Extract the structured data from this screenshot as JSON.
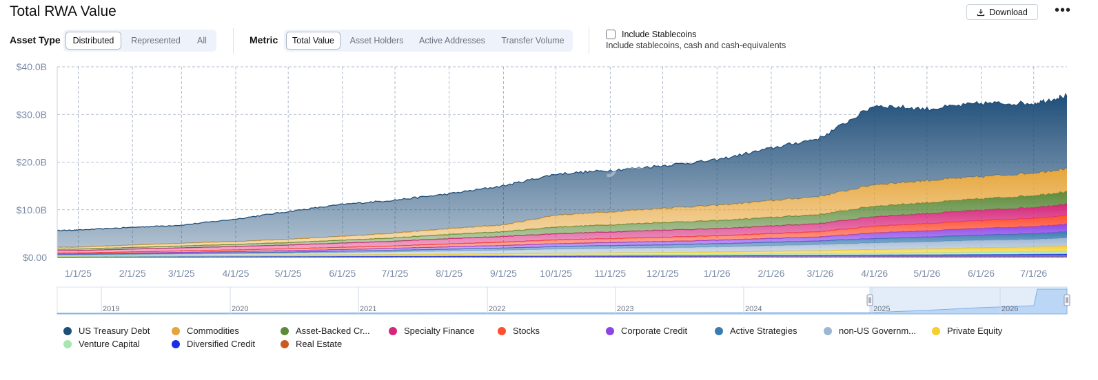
{
  "header": {
    "title": "Total RWA Value",
    "download_label": "Download",
    "more_label": "•••"
  },
  "controls": {
    "asset_type_label": "Asset Type",
    "asset_type_options": [
      "Distributed",
      "Represented",
      "All"
    ],
    "asset_type_selected": "Distributed",
    "metric_label": "Metric",
    "metric_options": [
      "Total Value",
      "Asset Holders",
      "Active Addresses",
      "Transfer Volume"
    ],
    "metric_selected": "Total Value",
    "stablecoins_label": "Include Stablecoins",
    "stablecoins_sublabel": "Include stablecoins, cash and cash-equivalents",
    "stablecoins_checked": false
  },
  "chart_data": {
    "type": "area",
    "stacked": true,
    "watermark": "rwa.xyz",
    "y_ticks": [
      "$0.00",
      "$10.0B",
      "$20.0B",
      "$30.0B",
      "$40.0B"
    ],
    "y_unit": "$B",
    "ylim": [
      0,
      40
    ],
    "grid": true,
    "x_tick_labels": [
      "1/1/25",
      "2/1/25",
      "3/1/25",
      "4/1/25",
      "5/1/25",
      "6/1/25",
      "7/1/25",
      "8/1/25",
      "9/1/25",
      "10/1/25",
      "11/1/25",
      "12/1/25",
      "1/1/26",
      "2/1/26",
      "3/1/26",
      "4/1/26",
      "5/1/26",
      "6/1/26",
      "7/1/26"
    ],
    "x": [
      "2024-12-20",
      "2025-01-01",
      "2025-02-01",
      "2025-03-01",
      "2025-04-01",
      "2025-05-01",
      "2025-06-01",
      "2025-07-01",
      "2025-08-01",
      "2025-09-01",
      "2025-10-01",
      "2025-11-01",
      "2025-12-01",
      "2026-01-01",
      "2026-02-01",
      "2026-03-01",
      "2026-04-01",
      "2026-05-01",
      "2026-06-01",
      "2026-07-01",
      "2026-07-20"
    ],
    "series": [
      {
        "name": "Real Estate",
        "color": "#cc5a1f",
        "values": [
          0.05,
          0.05,
          0.06,
          0.06,
          0.07,
          0.07,
          0.07,
          0.08,
          0.08,
          0.08,
          0.09,
          0.09,
          0.09,
          0.1,
          0.1,
          0.1,
          0.11,
          0.11,
          0.11,
          0.12,
          0.12
        ]
      },
      {
        "name": "Diversified Credit",
        "color": "#1a2ee6",
        "values": [
          0.1,
          0.1,
          0.1,
          0.12,
          0.12,
          0.13,
          0.14,
          0.15,
          0.16,
          0.17,
          0.2,
          0.22,
          0.24,
          0.26,
          0.3,
          0.35,
          0.4,
          0.45,
          0.5,
          0.55,
          0.6
        ]
      },
      {
        "name": "Venture Capital",
        "color": "#a8e6b0",
        "values": [
          0.1,
          0.1,
          0.12,
          0.12,
          0.14,
          0.15,
          0.16,
          0.18,
          0.2,
          0.22,
          0.25,
          0.27,
          0.3,
          0.32,
          0.35,
          0.38,
          0.42,
          0.45,
          0.5,
          0.55,
          0.6
        ]
      },
      {
        "name": "Private Equity",
        "color": "#f5cf2e",
        "values": [
          0.1,
          0.1,
          0.12,
          0.14,
          0.16,
          0.18,
          0.2,
          0.22,
          0.25,
          0.3,
          0.35,
          0.38,
          0.42,
          0.45,
          0.55,
          0.6,
          0.75,
          0.8,
          0.9,
          1.0,
          1.1
        ]
      },
      {
        "name": "non-US Government Debt",
        "color": "#9db6d2",
        "values": [
          0.2,
          0.2,
          0.25,
          0.3,
          0.35,
          0.4,
          0.5,
          0.6,
          0.7,
          0.8,
          0.9,
          1.0,
          1.0,
          1.1,
          1.2,
          1.3,
          1.4,
          1.5,
          1.6,
          1.6,
          1.7
        ]
      },
      {
        "name": "Active Strategies",
        "color": "#3b7bb0",
        "values": [
          0.1,
          0.1,
          0.12,
          0.14,
          0.16,
          0.2,
          0.25,
          0.3,
          0.35,
          0.4,
          0.5,
          0.55,
          0.6,
          0.65,
          0.7,
          0.75,
          0.9,
          1.0,
          1.1,
          1.2,
          1.3
        ]
      },
      {
        "name": "Corporate Credit",
        "color": "#8b45e6",
        "values": [
          0.1,
          0.1,
          0.15,
          0.2,
          0.25,
          0.3,
          0.35,
          0.4,
          0.5,
          0.55,
          0.6,
          0.65,
          0.7,
          0.75,
          0.8,
          0.85,
          1.2,
          1.3,
          1.4,
          1.5,
          1.6
        ]
      },
      {
        "name": "Stocks",
        "color": "#ff4f30",
        "values": [
          0.2,
          0.2,
          0.25,
          0.3,
          0.35,
          0.4,
          0.45,
          0.5,
          0.6,
          0.7,
          0.8,
          0.8,
          0.9,
          0.9,
          1.0,
          1.1,
          1.4,
          1.5,
          1.6,
          1.7,
          1.8
        ]
      },
      {
        "name": "Specialty Finance",
        "color": "#d6267a",
        "values": [
          0.5,
          0.5,
          0.6,
          0.65,
          0.7,
          0.8,
          0.9,
          1.0,
          1.1,
          1.2,
          1.3,
          1.4,
          1.5,
          1.5,
          1.6,
          1.7,
          2.0,
          2.1,
          2.2,
          2.3,
          2.4
        ]
      },
      {
        "name": "Asset-Backed Credit",
        "color": "#5c8a3a",
        "values": [
          0.3,
          0.3,
          0.35,
          0.4,
          0.45,
          0.5,
          0.6,
          0.7,
          0.9,
          1.0,
          1.4,
          1.5,
          1.6,
          1.7,
          1.8,
          1.9,
          2.2,
          2.3,
          2.4,
          2.5,
          2.6
        ]
      },
      {
        "name": "Commodities",
        "color": "#e6a53a",
        "values": [
          0.4,
          0.4,
          0.5,
          0.55,
          0.6,
          0.7,
          0.8,
          1.0,
          1.2,
          1.4,
          2.5,
          2.7,
          3.0,
          3.2,
          3.5,
          3.8,
          4.5,
          4.6,
          4.6,
          4.7,
          4.8
        ]
      },
      {
        "name": "US Treasury Debt",
        "color": "#1f4e79",
        "values": [
          3.5,
          3.6,
          3.7,
          3.8,
          4.7,
          5.8,
          6.7,
          6.9,
          7.3,
          8.2,
          8.6,
          8.7,
          8.9,
          9.5,
          11.0,
          12.2,
          16.6,
          15.0,
          15.4,
          14.6,
          15.3
        ]
      }
    ],
    "navigator": {
      "year_labels": [
        "2019",
        "2020",
        "2021",
        "2022",
        "2023",
        "2024",
        "2025",
        "2026"
      ]
    }
  },
  "legend": [
    {
      "label": "US Treasury Debt",
      "color": "#1f4e79"
    },
    {
      "label": "Commodities",
      "color": "#e6a53a"
    },
    {
      "label": "Asset-Backed Cr...",
      "color": "#5c8a3a"
    },
    {
      "label": "Specialty Finance",
      "color": "#d6267a"
    },
    {
      "label": "Stocks",
      "color": "#ff4f30"
    },
    {
      "label": "Corporate Credit",
      "color": "#8b45e6"
    },
    {
      "label": "Active Strategies",
      "color": "#3b7bb0"
    },
    {
      "label": "non-US Governm...",
      "color": "#9db6d2"
    },
    {
      "label": "Private Equity",
      "color": "#f5cf2e"
    },
    {
      "label": "Venture Capital",
      "color": "#a8e6b0"
    },
    {
      "label": "Diversified Credit",
      "color": "#1a2ee6"
    },
    {
      "label": "Real Estate",
      "color": "#cc5a1f"
    }
  ]
}
